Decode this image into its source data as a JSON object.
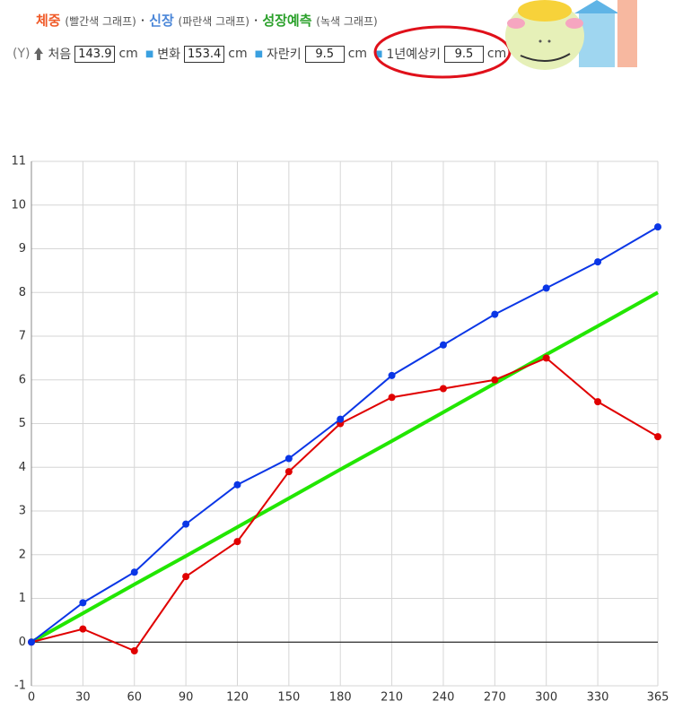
{
  "header": {
    "legend": [
      {
        "label": "체중",
        "note": "(빨간색 그래프)",
        "color": "#f05a28"
      },
      {
        "label": "신장",
        "note": "(파란색 그래프)",
        "color": "#4a86d8"
      },
      {
        "label": "성장예측",
        "note": "(녹색 그래프)",
        "color": "#2aa02a"
      }
    ],
    "separator": "·",
    "axis_label": "(Y)",
    "fields": [
      {
        "label": "처음",
        "value": "143.9",
        "unit": "cm"
      },
      {
        "label": "변화",
        "value": "153.4",
        "unit": "cm"
      },
      {
        "label": "자란키",
        "value": "9.5",
        "unit": "cm"
      },
      {
        "label": "1년예상키",
        "value": "9.5",
        "unit": "cm"
      }
    ]
  },
  "chart_data": {
    "type": "line",
    "x": [
      0,
      30,
      60,
      90,
      120,
      150,
      180,
      210,
      240,
      270,
      300,
      330,
      365
    ],
    "series": [
      {
        "color": "#e00000",
        "values": [
          0,
          0.3,
          -0.2,
          1.5,
          2.3,
          3.9,
          5.0,
          5.6,
          5.8,
          6.0,
          6.5,
          5.5,
          4.7
        ],
        "markers": true
      },
      {
        "color": "#0a36e6",
        "values": [
          0,
          0.9,
          1.6,
          2.7,
          3.6,
          4.2,
          5.1,
          6.1,
          6.8,
          7.5,
          8.1,
          8.7,
          9.5
        ],
        "markers": true
      },
      {
        "color": "#22e600",
        "values": [
          0,
          0.66,
          1.32,
          1.97,
          2.63,
          3.29,
          3.95,
          4.6,
          5.26,
          5.92,
          6.58,
          7.23,
          8.0
        ],
        "markers": false
      }
    ],
    "xlim": [
      0,
      365
    ],
    "xticks": [
      0,
      30,
      60,
      90,
      120,
      150,
      180,
      210,
      240,
      270,
      300,
      330,
      365
    ],
    "ylim": [
      -1,
      11
    ],
    "yticks": [
      -1,
      0,
      1,
      2,
      3,
      4,
      5,
      6,
      7,
      8,
      9,
      10,
      11
    ],
    "grid": true
  }
}
